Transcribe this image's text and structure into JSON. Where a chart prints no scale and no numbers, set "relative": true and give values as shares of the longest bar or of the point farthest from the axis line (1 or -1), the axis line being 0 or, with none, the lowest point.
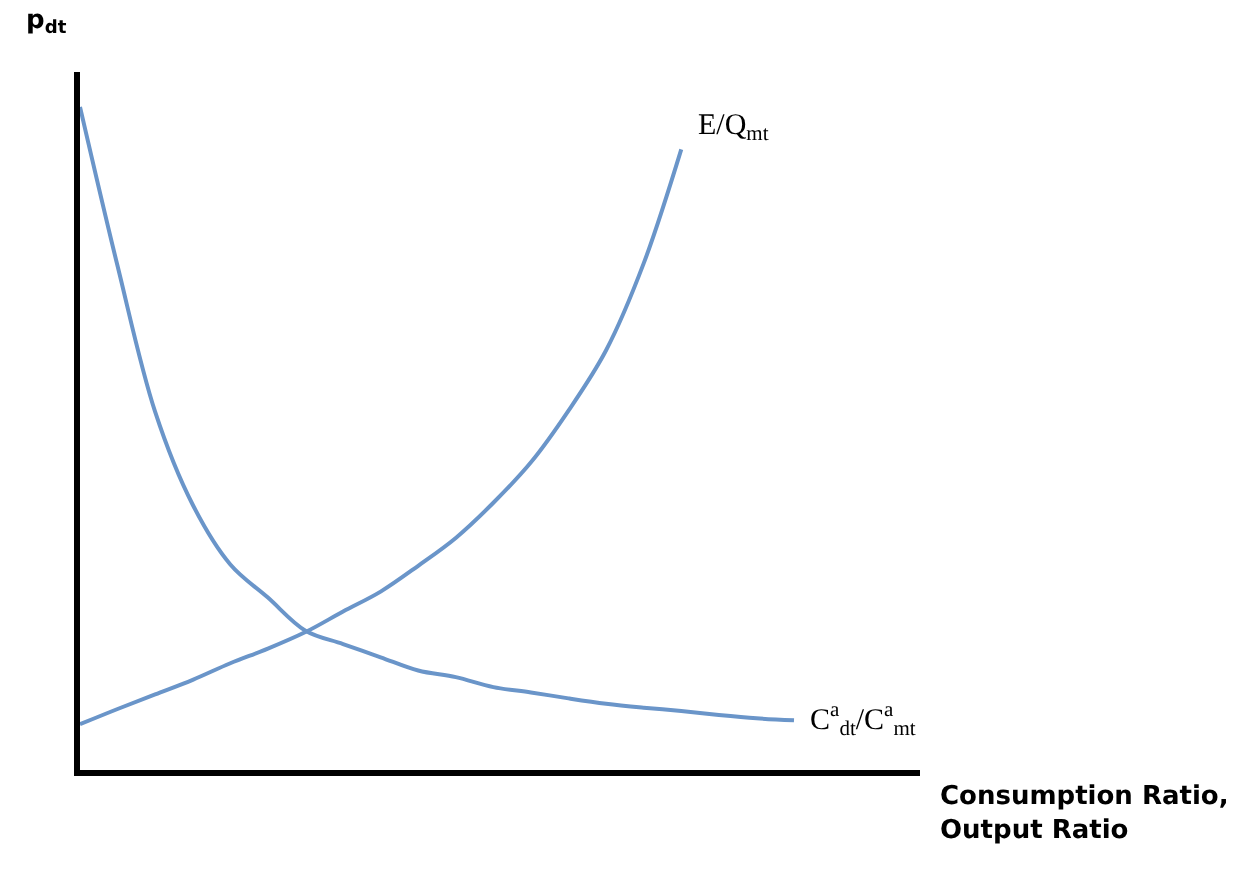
{
  "chart_data": {
    "type": "line",
    "relative": true,
    "xlabel": "Consumption Ratio,\nOutput Ratio",
    "ylabel": "p$_{dt}$",
    "categories": [
      null,
      null,
      null,
      null,
      null,
      null,
      null,
      null,
      null,
      null,
      null,
      null,
      null,
      null,
      null,
      null,
      null,
      null,
      null,
      null
    ],
    "series": [
      {
        "name": "C$^{a}$$_{dt}$/C$^{a}$$_{mt}$",
        "color": "#6a95c9",
        "values": [
          1,
          0.76,
          0.54,
          0.4,
          0.31,
          0.26,
          0.21,
          0.19,
          0.17,
          0.15,
          0.14,
          0.125,
          0.117,
          0.108,
          0.1,
          0.094,
          0.089,
          0.083,
          0.078,
          0.075
        ]
      },
      {
        "name": "E/Q$_{mt}$",
        "color": "#6a95c9",
        "values": [
          0.069,
          0.092,
          0.114,
          0.136,
          0.161,
          0.183,
          0.208,
          0.239,
          0.269,
          0.308,
          0.35,
          0.403,
          0.464,
          0.542,
          0.633,
          0.764,
          0.936,
          null,
          null,
          null
        ]
      }
    ],
    "legend": false,
    "marker": "none",
    "line_style": "solid"
  }
}
